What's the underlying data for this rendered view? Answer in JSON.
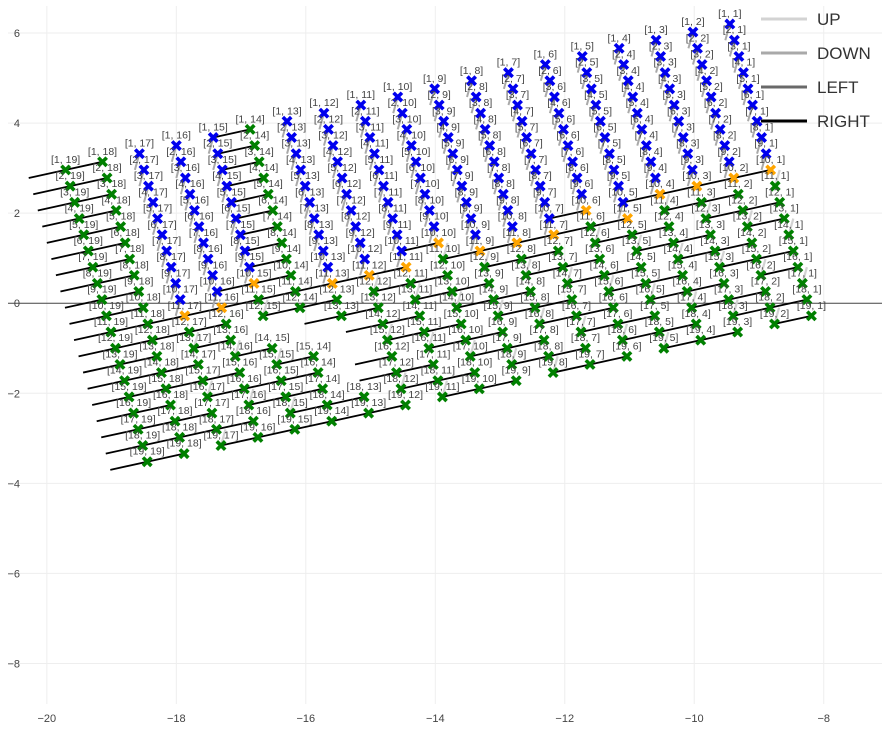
{
  "chart_data": {
    "type": "scatter",
    "title": "",
    "xlabel": "",
    "ylabel": "",
    "xlim": [
      -20.6,
      -7.1
    ],
    "ylim": [
      -8.9,
      6.6
    ],
    "grid": true,
    "zero_line": "y=0",
    "legend_position": "top-right",
    "x_ticks": [
      -20,
      -18,
      -16,
      -14,
      -12,
      -10,
      -8
    ],
    "y_ticks": [
      6,
      4,
      2,
      0,
      -2,
      -4,
      -6,
      -8
    ],
    "x_tick_labels": [
      "−20",
      "−18",
      "−16",
      "−14",
      "−12",
      "−10",
      "−8"
    ],
    "y_tick_labels": [
      "6",
      "4",
      "2",
      "0",
      "−2",
      "−4",
      "−6",
      "−8"
    ],
    "legend": [
      {
        "name": "UP",
        "color": "#d3d3d3"
      },
      {
        "name": "DOWN",
        "color": "#a9a9a9"
      },
      {
        "name": "LEFT",
        "color": "#696969"
      },
      {
        "name": "RIGHT",
        "color": "#000000"
      }
    ],
    "grid_rows": 19,
    "grid_cols": 19,
    "origin": {
      "row": 1,
      "col": 1,
      "x": -9.45,
      "y": 6.2
    },
    "col_step": {
      "dx": -0.57,
      "dy": -0.18
    },
    "row_step": {
      "dx": 0.07,
      "dy": -0.36
    },
    "point_label_format": "[row, col]",
    "marker_colors": {
      "above_path": "#0000ee",
      "path": "#ffa500",
      "below_path": "#008000"
    },
    "marker_symbol": "x",
    "path_cells": [
      [
        10,
        1
      ],
      [
        10,
        2
      ],
      [
        10,
        3
      ],
      [
        10,
        4
      ],
      [
        11,
        5
      ],
      [
        10,
        6
      ],
      [
        11,
        7
      ],
      [
        11,
        8
      ],
      [
        11,
        9
      ],
      [
        10,
        10
      ],
      [
        11,
        11
      ],
      [
        11,
        12
      ],
      [
        11,
        13
      ],
      [
        10,
        15
      ],
      [
        11,
        16
      ],
      [
        11,
        17
      ]
    ],
    "missing_cells": [
      [
        13,
        14
      ],
      [
        13,
        15
      ],
      [
        14,
        13
      ],
      [
        14,
        14
      ],
      [
        15,
        13
      ],
      [
        16,
        13
      ],
      [
        17,
        13
      ]
    ],
    "move_lines": {
      "UP": {
        "dx": 0.07,
        "dy": 0.36
      },
      "DOWN": {
        "dx": -0.07,
        "dy": -0.36
      },
      "LEFT": {
        "dx": 0.57,
        "dy": 0.18
      },
      "RIGHT": {
        "dx": -0.57,
        "dy": -0.18
      }
    }
  }
}
